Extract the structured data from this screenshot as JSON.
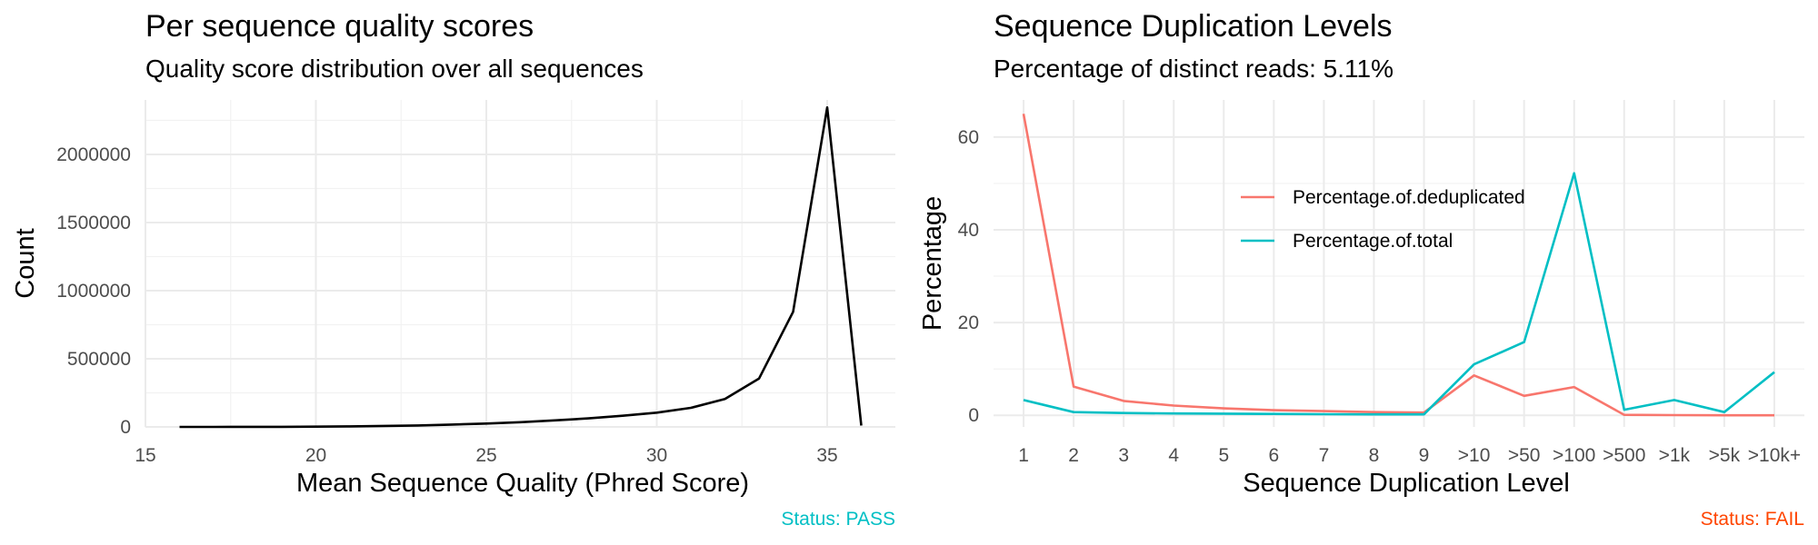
{
  "chart_data": [
    {
      "type": "line",
      "title": "Per sequence quality scores",
      "subtitle": "Quality score distribution over all sequences",
      "xlabel": "Mean Sequence Quality (Phred Score)",
      "ylabel": "Count",
      "xlim": [
        15,
        37
      ],
      "ylim": [
        0,
        2400000
      ],
      "x_ticks": [
        15,
        20,
        25,
        30,
        35
      ],
      "y_ticks": [
        0,
        500000,
        1000000,
        1500000,
        2000000
      ],
      "grid": true,
      "series": [
        {
          "color": "#000000",
          "x": [
            16,
            17,
            18,
            19,
            20,
            21,
            22,
            23,
            24,
            25,
            26,
            27,
            28,
            29,
            30,
            31,
            32,
            33,
            34,
            35,
            36
          ],
          "y": [
            100,
            200,
            400,
            1000,
            2000,
            4000,
            7000,
            11000,
            17000,
            25000,
            35000,
            48000,
            63000,
            82000,
            105000,
            140000,
            205000,
            355000,
            845000,
            2345000,
            10000
          ]
        }
      ],
      "status": {
        "text": "Status: PASS",
        "color": "#00BFC4"
      }
    },
    {
      "type": "line",
      "title": "Sequence Duplication Levels",
      "subtitle": "Percentage of distinct reads: 5.11%",
      "xlabel": "Sequence Duplication Level",
      "ylabel": "Percentage",
      "categories": [
        "1",
        "2",
        "3",
        "4",
        "5",
        "6",
        "7",
        "8",
        "9",
        ">10",
        ">50",
        ">100",
        ">500",
        ">1k",
        ">5k",
        ">10k+"
      ],
      "ylim": [
        -2.5,
        68
      ],
      "y_ticks": [
        0,
        20,
        40,
        60
      ],
      "grid": true,
      "legend_position": "top-center",
      "series": [
        {
          "name": "Percentage.of.deduplicated",
          "color": "#F8766D",
          "values": [
            65.0,
            6.2,
            3.1,
            2.1,
            1.5,
            1.1,
            0.9,
            0.7,
            0.6,
            8.6,
            4.2,
            6.1,
            0.1,
            0.05,
            0.01,
            0.0
          ]
        },
        {
          "name": "Percentage.of.total",
          "color": "#00BFC4",
          "values": [
            3.3,
            0.7,
            0.5,
            0.4,
            0.35,
            0.3,
            0.25,
            0.2,
            0.2,
            11.0,
            15.8,
            52.2,
            1.2,
            3.3,
            0.7,
            9.3
          ]
        }
      ],
      "status": {
        "text": "Status: FAIL",
        "color": "#FF4500"
      }
    }
  ]
}
